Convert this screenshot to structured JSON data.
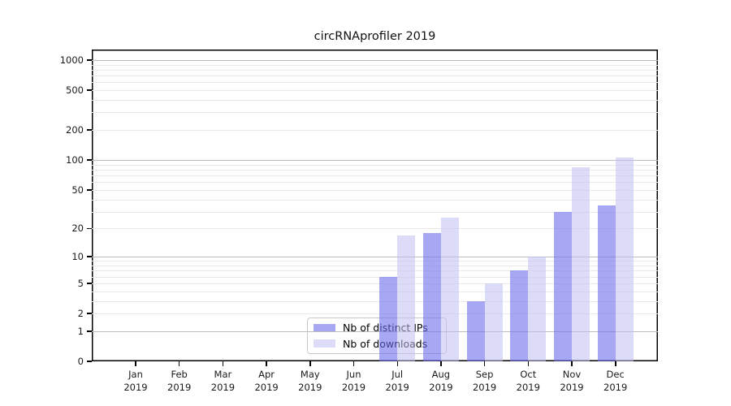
{
  "title": "circRNAprofiler 2019",
  "legend": {
    "items": [
      {
        "label": "Nb of distinct IPs",
        "color": "#a7a7f3"
      },
      {
        "label": "Nb of downloads",
        "color": "#dcdcf8"
      }
    ]
  },
  "chart_data": {
    "type": "bar",
    "title": "circRNAprofiler 2019",
    "categories": [
      "Jan 2019",
      "Feb 2019",
      "Mar 2019",
      "Apr 2019",
      "May 2019",
      "Jun 2019",
      "Jul 2019",
      "Aug 2019",
      "Sep 2019",
      "Oct 2019",
      "Nov 2019",
      "Dec 2019"
    ],
    "x_months": [
      "Jan",
      "Feb",
      "Mar",
      "Apr",
      "May",
      "Jun",
      "Jul",
      "Aug",
      "Sep",
      "Oct",
      "Nov",
      "Dec"
    ],
    "x_year": "2019",
    "series": [
      {
        "name": "Nb of distinct IPs",
        "color": "#a7a7f3",
        "values": [
          0,
          0,
          0,
          0,
          0,
          0,
          6,
          18,
          3,
          7,
          30,
          35
        ]
      },
      {
        "name": "Nb of downloads",
        "color": "#dcdcf8",
        "values": [
          0,
          0,
          0,
          0,
          0,
          0,
          17,
          26,
          5,
          10,
          85,
          106
        ]
      }
    ],
    "yscale": "log1p",
    "yticks": [
      0,
      1,
      2,
      5,
      10,
      20,
      50,
      100,
      200,
      500,
      1000
    ],
    "y_major_gridlines": [
      1,
      10,
      100,
      1000
    ],
    "ylim": [
      0,
      1270
    ],
    "grid": true,
    "legend_position": "inside-bottom-center-left"
  },
  "colors": {
    "bar_ips": "#a7a7f3",
    "bar_downloads": "#dcdcf8",
    "grid_minor": "#eaeaea",
    "grid_major": "#bdbdbd",
    "axis": "#000000",
    "title_text": "#111111"
  }
}
